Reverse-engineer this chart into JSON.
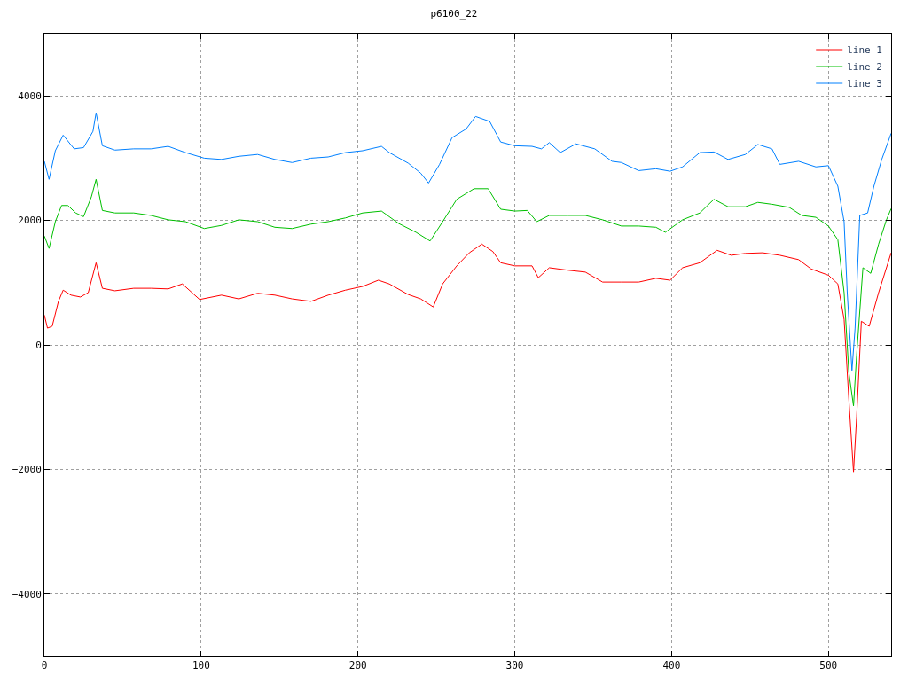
{
  "chart_data": {
    "type": "line",
    "title": "p6100_22",
    "xlim": [
      0,
      540
    ],
    "xticks": [
      0,
      100,
      200,
      300,
      400,
      500
    ],
    "ylim": [
      -5000,
      5000
    ],
    "yticks": [
      -4000,
      -2000,
      0,
      2000,
      4000
    ],
    "grid": true,
    "legend": "top right",
    "marker": "none",
    "line_style": "solid",
    "series": [
      {
        "name": "line 1",
        "color": "#ff0000",
        "x": [
          0,
          2,
          5,
          9,
          12,
          17,
          23,
          28,
          33,
          37,
          45,
          57,
          68,
          79,
          88,
          99,
          113,
          124,
          136,
          147,
          158,
          170,
          181,
          192,
          203,
          213,
          220,
          232,
          240,
          248,
          254,
          263,
          271,
          279,
          286,
          291,
          300,
          311,
          315,
          322,
          334,
          345,
          356,
          368,
          379,
          390,
          399,
          407,
          418,
          429,
          438,
          447,
          458,
          469,
          481,
          489,
          500,
          506,
          510,
          513,
          516,
          518,
          521,
          526,
          532,
          540
        ],
        "values": [
          480,
          270,
          300,
          700,
          880,
          800,
          770,
          840,
          1320,
          910,
          870,
          910,
          910,
          900,
          980,
          730,
          800,
          740,
          830,
          800,
          740,
          700,
          800,
          880,
          940,
          1040,
          980,
          810,
          740,
          610,
          980,
          1270,
          1480,
          1620,
          1500,
          1320,
          1270,
          1270,
          1080,
          1240,
          1200,
          1170,
          1010,
          1010,
          1010,
          1070,
          1040,
          1240,
          1320,
          1520,
          1440,
          1470,
          1480,
          1440,
          1370,
          1220,
          1120,
          980,
          410,
          -870,
          -2040,
          -1150,
          380,
          300,
          840,
          1480
        ]
      },
      {
        "name": "line 2",
        "color": "#00c000",
        "x": [
          0,
          3,
          7,
          11,
          15,
          20,
          25,
          30,
          33,
          37,
          45,
          57,
          68,
          79,
          90,
          102,
          113,
          124,
          136,
          147,
          158,
          170,
          181,
          192,
          203,
          215,
          226,
          237,
          246,
          254,
          263,
          274,
          283,
          291,
          300,
          308,
          314,
          322,
          334,
          345,
          356,
          368,
          379,
          390,
          396,
          407,
          418,
          427,
          436,
          447,
          455,
          464,
          475,
          483,
          492,
          500,
          506,
          510,
          513,
          516,
          518,
          522,
          527,
          532,
          537,
          540
        ],
        "values": [
          1750,
          1550,
          1980,
          2240,
          2240,
          2120,
          2060,
          2380,
          2660,
          2160,
          2120,
          2120,
          2080,
          2010,
          1980,
          1870,
          1920,
          2010,
          1980,
          1890,
          1870,
          1940,
          1980,
          2040,
          2120,
          2150,
          1950,
          1810,
          1670,
          1980,
          2340,
          2510,
          2510,
          2180,
          2150,
          2160,
          1980,
          2080,
          2080,
          2080,
          2010,
          1910,
          1910,
          1890,
          1810,
          2010,
          2120,
          2340,
          2220,
          2220,
          2290,
          2260,
          2210,
          2080,
          2050,
          1910,
          1690,
          840,
          -440,
          -980,
          -160,
          1240,
          1150,
          1620,
          2010,
          2190
        ]
      },
      {
        "name": "line 3",
        "color": "#0080ff",
        "x": [
          0,
          3,
          7,
          12,
          19,
          25,
          31,
          33,
          37,
          45,
          57,
          68,
          79,
          90,
          102,
          113,
          124,
          136,
          147,
          158,
          170,
          181,
          192,
          203,
          215,
          220,
          232,
          240,
          245,
          252,
          260,
          269,
          275,
          284,
          291,
          300,
          311,
          317,
          322,
          329,
          339,
          351,
          362,
          368,
          379,
          390,
          399,
          407,
          418,
          427,
          436,
          447,
          455,
          464,
          469,
          481,
          492,
          500,
          506,
          510,
          512,
          515,
          517,
          520,
          525,
          529,
          534,
          540
        ],
        "values": [
          2950,
          2660,
          3120,
          3370,
          3150,
          3170,
          3430,
          3730,
          3200,
          3130,
          3150,
          3150,
          3190,
          3090,
          3000,
          2980,
          3030,
          3060,
          2980,
          2930,
          3000,
          3020,
          3090,
          3120,
          3190,
          3090,
          2920,
          2760,
          2600,
          2900,
          3330,
          3470,
          3670,
          3590,
          3260,
          3200,
          3190,
          3150,
          3250,
          3090,
          3230,
          3150,
          2950,
          2930,
          2800,
          2830,
          2790,
          2860,
          3090,
          3100,
          2980,
          3060,
          3220,
          3150,
          2900,
          2950,
          2860,
          2880,
          2550,
          1980,
          840,
          -410,
          270,
          2080,
          2120,
          2550,
          2980,
          3400
        ]
      }
    ]
  }
}
